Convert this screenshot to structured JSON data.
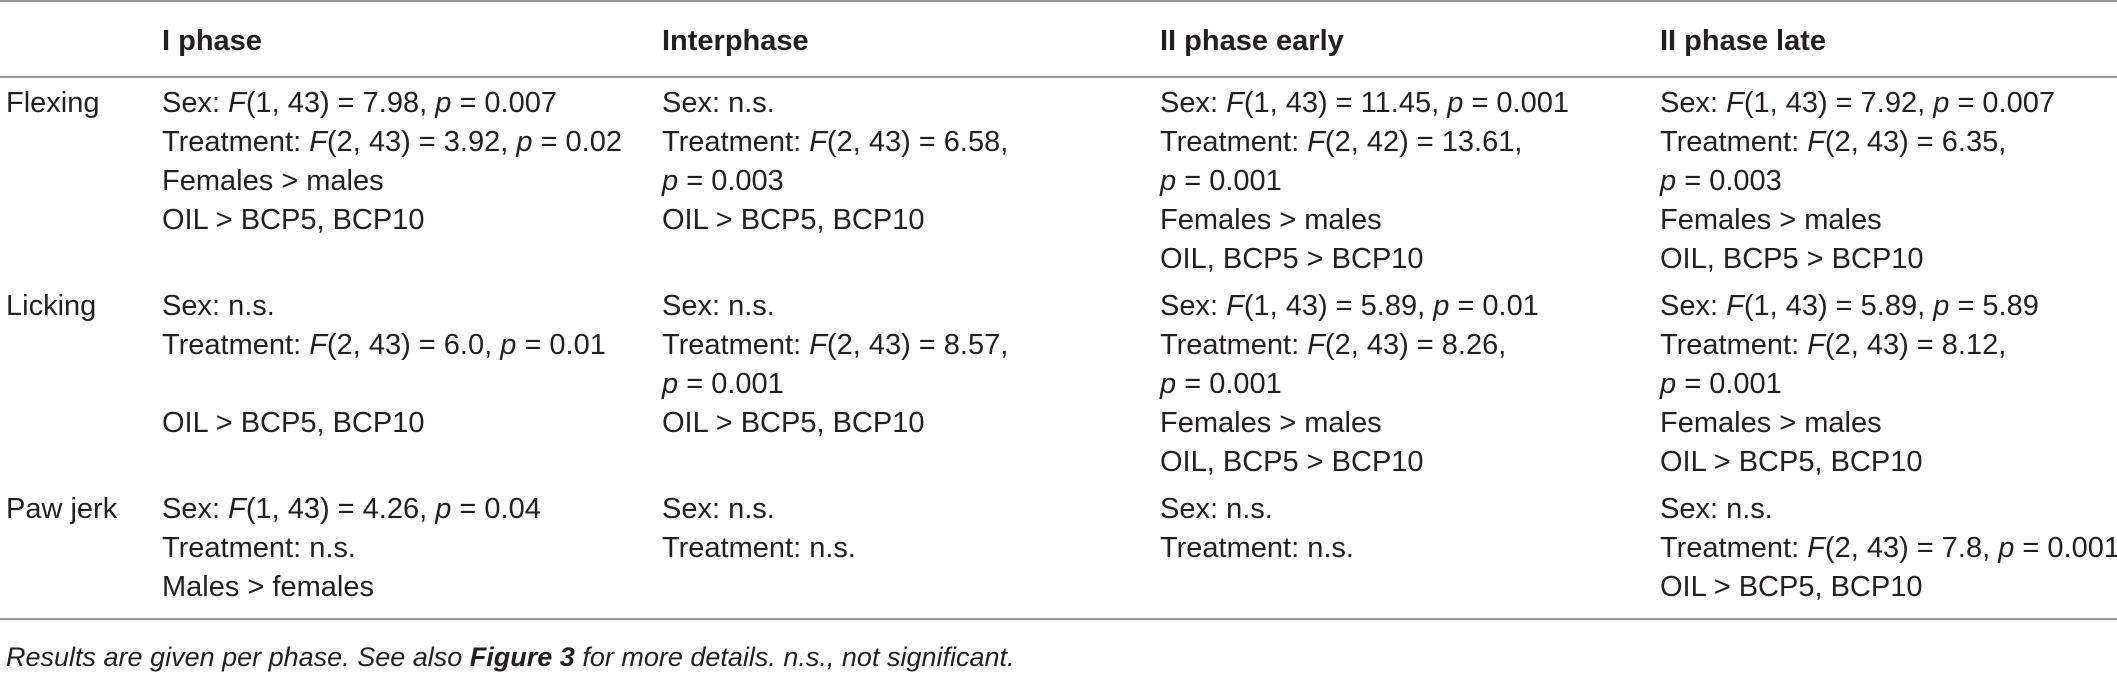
{
  "table": {
    "headers": [
      "",
      "I phase",
      "Interphase",
      "II phase early",
      "II phase late"
    ],
    "rows": [
      {
        "label": "Flexing",
        "cells": [
          [
            {
              "pre": "Sex: ",
              "f": "F",
              "mid": "(1, 43) = 7.98, ",
              "p": "p",
              "post": " = 0.007"
            },
            {
              "pre": "Treatment: ",
              "f": "F",
              "mid": "(2, 43) = 3.92, ",
              "p": "p",
              "post": " = 0.02"
            },
            {
              "text": "Females > males"
            },
            {
              "text": "OIL > BCP5, BCP10"
            }
          ],
          [
            {
              "text": "Sex: n.s."
            },
            {
              "pre": "Treatment: ",
              "f": "F",
              "mid": "(2, 43) = 6.58,"
            },
            {
              "p": "p",
              "post": " = 0.003"
            },
            {
              "text": "OIL > BCP5, BCP10"
            }
          ],
          [
            {
              "pre": "Sex: ",
              "f": "F",
              "mid": "(1, 43) = 11.45, ",
              "p": "p",
              "post": " = 0.001"
            },
            {
              "pre": "Treatment: ",
              "f": "F",
              "mid": "(2, 42) = 13.61,"
            },
            {
              "p": "p",
              "post": " = 0.001"
            },
            {
              "text": "Females > males"
            },
            {
              "text": "OIL, BCP5 > BCP10"
            }
          ],
          [
            {
              "pre": "Sex: ",
              "f": "F",
              "mid": "(1, 43) = 7.92, ",
              "p": "p",
              "post": " = 0.007"
            },
            {
              "pre": "Treatment: ",
              "f": "F",
              "mid": "(2, 43) = 6.35,"
            },
            {
              "p": "p",
              "post": " = 0.003"
            },
            {
              "text": "Females > males"
            },
            {
              "text": "OIL, BCP5 > BCP10"
            }
          ]
        ]
      },
      {
        "label": "Licking",
        "cells": [
          [
            {
              "text": "Sex: n.s."
            },
            {
              "pre": "Treatment: ",
              "f": "F",
              "mid": "(2, 43) = 6.0, ",
              "p": "p",
              "post": " = 0.01"
            },
            {
              "blank": true
            },
            {
              "text": "OIL > BCP5, BCP10"
            }
          ],
          [
            {
              "text": "Sex: n.s."
            },
            {
              "pre": "Treatment: ",
              "f": "F",
              "mid": "(2, 43) = 8.57,"
            },
            {
              "p": "p",
              "post": " = 0.001"
            },
            {
              "text": "OIL > BCP5, BCP10"
            }
          ],
          [
            {
              "pre": "Sex: ",
              "f": "F",
              "mid": "(1, 43) = 5.89, ",
              "p": "p",
              "post": " = 0.01"
            },
            {
              "pre": "Treatment: ",
              "f": "F",
              "mid": "(2, 43) = 8.26,"
            },
            {
              "p": "p",
              "post": " = 0.001"
            },
            {
              "text": "Females > males"
            },
            {
              "text": "OIL, BCP5 > BCP10"
            }
          ],
          [
            {
              "pre": "Sex: ",
              "f": "F",
              "mid": "(1, 43) = 5.89, ",
              "p": "p",
              "post": " = 5.89"
            },
            {
              "pre": "Treatment: ",
              "f": "F",
              "mid": "(2, 43) = 8.12,"
            },
            {
              "p": "p",
              "post": " = 0.001"
            },
            {
              "text": "Females > males"
            },
            {
              "text": "OIL > BCP5, BCP10"
            }
          ]
        ]
      },
      {
        "label": "Paw jerk",
        "cells": [
          [
            {
              "pre": "Sex: ",
              "f": "F",
              "mid": "(1, 43) = 4.26, ",
              "p": "p",
              "post": " = 0.04"
            },
            {
              "text": "Treatment: n.s."
            },
            {
              "text": "Males > females"
            }
          ],
          [
            {
              "text": "Sex: n.s."
            },
            {
              "text": "Treatment: n.s."
            }
          ],
          [
            {
              "text": "Sex: n.s."
            },
            {
              "text": "Treatment: n.s."
            }
          ],
          [
            {
              "text": "Sex: n.s."
            },
            {
              "pre": "Treatment: ",
              "f": "F",
              "mid": "(2, 43) = 7.8, ",
              "p": "p",
              "post": " = 0.001"
            },
            {
              "text": "OIL > BCP5, BCP10"
            }
          ]
        ]
      }
    ]
  },
  "footnote": {
    "before": "Results are given per phase. See also ",
    "bold": "Figure 3",
    "after": " for more details. n.s., not significant."
  }
}
